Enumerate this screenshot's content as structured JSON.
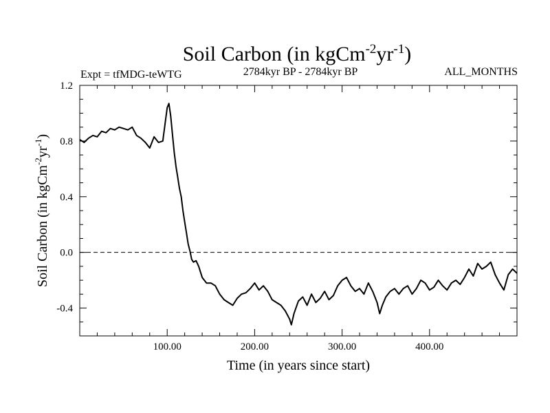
{
  "chart_data": {
    "type": "line",
    "title": "Soil Carbon (in kgCm",
    "title_sup1": "-2",
    "title_mid": "yr",
    "title_sup2": "-1",
    "title_end": ")",
    "subtitle_left": "Expt = tfMDG-teWTG",
    "subtitle_center": "2784kyr BP - 2784kyr BP",
    "subtitle_right": "ALL_MONTHS",
    "xlabel": "Time (in years since start)",
    "ylabel": "Soil Carbon (in kgCm",
    "ylabel_sup1": "-2",
    "ylabel_mid": "yr",
    "ylabel_sup2": "-1",
    "ylabel_end": ")",
    "xlim": [
      0,
      500
    ],
    "ylim": [
      -0.6,
      1.2
    ],
    "xticks": [
      {
        "value": 100,
        "label": "100.00"
      },
      {
        "value": 200,
        "label": "200.00"
      },
      {
        "value": 300,
        "label": "300.00"
      },
      {
        "value": 400,
        "label": "400.00"
      }
    ],
    "yticks": [
      {
        "value": 1.2,
        "label": "1.2"
      },
      {
        "value": 0.8,
        "label": "0.8"
      },
      {
        "value": 0.4,
        "label": "0.4"
      },
      {
        "value": 0.0,
        "label": "0.0"
      },
      {
        "value": -0.4,
        "label": "-0.4"
      }
    ],
    "reference_line": 0.0,
    "series": [
      {
        "name": "Soil Carbon",
        "x": [
          0,
          5,
          10,
          15,
          20,
          25,
          30,
          35,
          40,
          45,
          50,
          55,
          60,
          65,
          70,
          75,
          80,
          85,
          90,
          95,
          100,
          102,
          104,
          106,
          108,
          110,
          112,
          114,
          116,
          118,
          120,
          122,
          124,
          126,
          128,
          130,
          133,
          136,
          140,
          145,
          150,
          155,
          160,
          165,
          170,
          175,
          180,
          185,
          190,
          195,
          200,
          205,
          210,
          215,
          220,
          225,
          230,
          235,
          240,
          242,
          245,
          250,
          255,
          260,
          265,
          270,
          275,
          280,
          285,
          290,
          295,
          300,
          305,
          310,
          315,
          320,
          325,
          330,
          335,
          340,
          343,
          346,
          350,
          355,
          360,
          365,
          370,
          375,
          380,
          385,
          390,
          395,
          400,
          405,
          410,
          415,
          420,
          425,
          430,
          435,
          440,
          445,
          450,
          455,
          460,
          465,
          470,
          475,
          480,
          485,
          490,
          495,
          500
        ],
        "y": [
          0.81,
          0.79,
          0.82,
          0.84,
          0.83,
          0.87,
          0.86,
          0.89,
          0.88,
          0.9,
          0.89,
          0.88,
          0.9,
          0.84,
          0.82,
          0.79,
          0.75,
          0.83,
          0.79,
          0.8,
          1.04,
          1.07,
          0.98,
          0.85,
          0.72,
          0.62,
          0.54,
          0.46,
          0.4,
          0.3,
          0.22,
          0.14,
          0.06,
          0.01,
          -0.05,
          -0.07,
          -0.06,
          -0.1,
          -0.18,
          -0.22,
          -0.22,
          -0.24,
          -0.3,
          -0.34,
          -0.36,
          -0.38,
          -0.33,
          -0.3,
          -0.29,
          -0.26,
          -0.22,
          -0.27,
          -0.24,
          -0.28,
          -0.34,
          -0.36,
          -0.38,
          -0.42,
          -0.48,
          -0.52,
          -0.44,
          -0.35,
          -0.32,
          -0.38,
          -0.3,
          -0.36,
          -0.33,
          -0.28,
          -0.34,
          -0.31,
          -0.24,
          -0.2,
          -0.18,
          -0.24,
          -0.28,
          -0.26,
          -0.3,
          -0.22,
          -0.28,
          -0.36,
          -0.44,
          -0.38,
          -0.32,
          -0.28,
          -0.26,
          -0.3,
          -0.26,
          -0.24,
          -0.3,
          -0.26,
          -0.2,
          -0.22,
          -0.27,
          -0.25,
          -0.2,
          -0.24,
          -0.27,
          -0.22,
          -0.2,
          -0.23,
          -0.18,
          -0.12,
          -0.17,
          -0.08,
          -0.12,
          -0.1,
          -0.07,
          -0.16,
          -0.22,
          -0.27,
          -0.16,
          -0.12,
          -0.15
        ]
      }
    ]
  }
}
